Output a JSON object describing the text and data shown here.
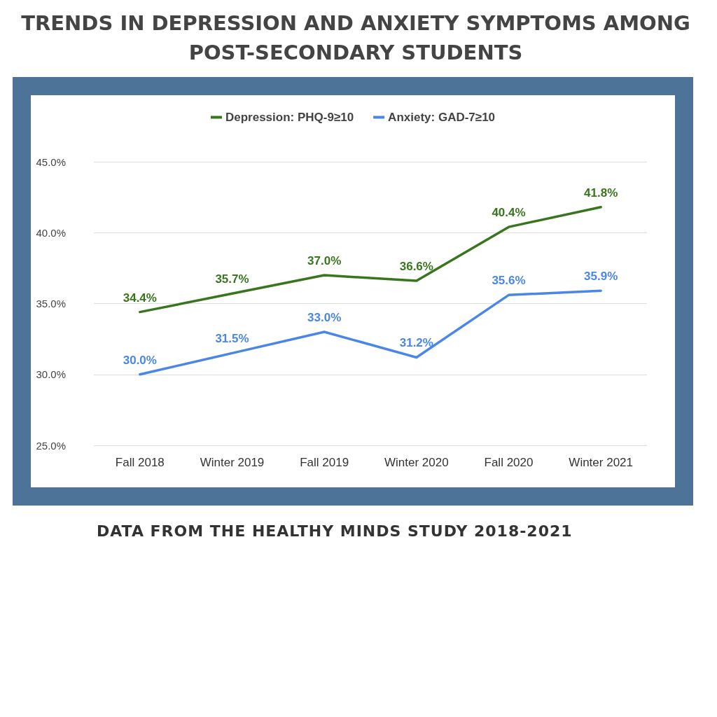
{
  "chart_data": {
    "type": "line",
    "title": "TRENDS IN DEPRESSION AND ANXIETY SYMPTOMS AMONG POST-SECONDARY STUDENTS",
    "categories": [
      "Fall 2018",
      "Winter 2019",
      "Fall 2019",
      "Winter 2020",
      "Fall 2020",
      "Winter 2021"
    ],
    "series": [
      {
        "name": "Depression: PHQ-9≥10",
        "color": "#38761d",
        "values": [
          34.4,
          35.7,
          37.0,
          36.6,
          40.4,
          41.8
        ],
        "value_labels": [
          "34.4%",
          "35.7%",
          "37.0%",
          "36.6%",
          "40.4%",
          "41.8%"
        ]
      },
      {
        "name": "Anxiety: GAD-7≥10",
        "color": "#4a86e8",
        "values": [
          30.0,
          31.5,
          33.0,
          31.2,
          35.6,
          35.9
        ],
        "value_labels": [
          "30.0%",
          "31.5%",
          "33.0%",
          "31.2%",
          "35.6%",
          "35.9%"
        ]
      }
    ],
    "ylim": [
      25,
      45
    ],
    "yticks": [
      {
        "value": 25,
        "label": "25.0%"
      },
      {
        "value": 30,
        "label": "30.0%"
      },
      {
        "value": 35,
        "label": "35.0%"
      },
      {
        "value": 40,
        "label": "40.0%"
      },
      {
        "value": 45,
        "label": "45.0%"
      }
    ],
    "grid": "y",
    "legend": "top",
    "marker": "none",
    "line_style": "solid",
    "annotations": [
      "DATA FROM THE HEALTHY MINDS STUDY 2018-2021"
    ]
  }
}
